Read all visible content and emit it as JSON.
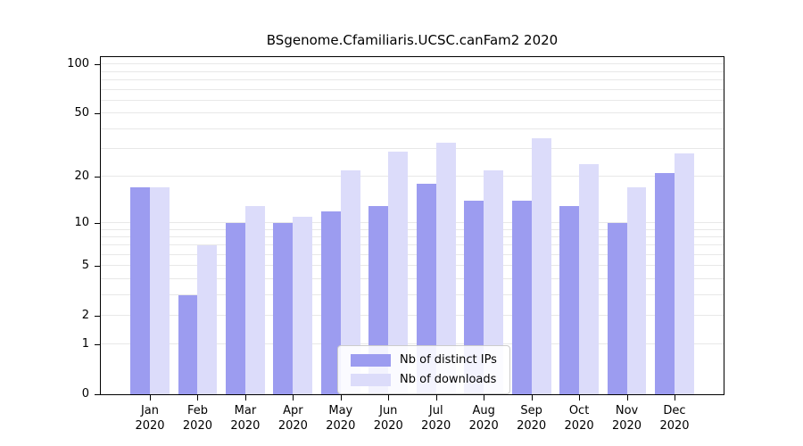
{
  "chart_data": {
    "type": "bar",
    "title": "BSgenome.Cfamiliaris.UCSC.canFam2 2020",
    "categories": [
      "Jan",
      "Feb",
      "Mar",
      "Apr",
      "May",
      "Jun",
      "Jul",
      "Aug",
      "Sep",
      "Oct",
      "Nov",
      "Dec"
    ],
    "year_label": "2020",
    "series": [
      {
        "name": "Nb of distinct IPs",
        "color": "#9c9cf0",
        "values": [
          17,
          3,
          10,
          10,
          12,
          13,
          18,
          14,
          14,
          13,
          10,
          21
        ]
      },
      {
        "name": "Nb of downloads",
        "color": "#dcdcfa",
        "values": [
          17,
          7,
          13,
          11,
          22,
          29,
          33,
          22,
          35,
          24,
          17,
          28
        ]
      }
    ],
    "y_ticks": [
      0,
      1,
      2,
      5,
      10,
      20,
      50,
      100
    ],
    "grid_values": [
      1,
      2,
      3,
      4,
      5,
      6,
      7,
      8,
      9,
      10,
      20,
      30,
      40,
      50,
      60,
      70,
      80,
      90,
      100
    ],
    "scale": "log1p",
    "ylim": [
      0,
      111
    ],
    "grid": true,
    "legend_position": "bottom-center",
    "legend_labels": [
      "Nb of distinct IPs",
      "Nb of downloads"
    ]
  }
}
